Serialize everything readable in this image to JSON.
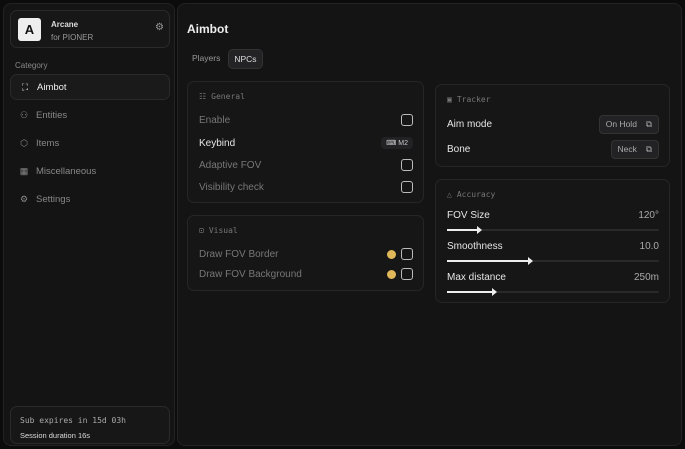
{
  "brand": {
    "logo_letter": "A",
    "name": "Arcane",
    "subtitle": "for PIONER"
  },
  "sidebar": {
    "category_label": "Category",
    "items": [
      {
        "label": "Aimbot",
        "icon": "crosshair-icon",
        "active": true
      },
      {
        "label": "Entities",
        "icon": "entities-icon"
      },
      {
        "label": "Items",
        "icon": "cube-icon"
      },
      {
        "label": "Miscellaneous",
        "icon": "grid-icon"
      },
      {
        "label": "Settings",
        "icon": "gear-icon"
      }
    ]
  },
  "footer": {
    "subscription": "Sub expires in 15d 03h",
    "session": "Session duration 16s"
  },
  "main": {
    "title": "Aimbot",
    "tabs": [
      {
        "label": "Players"
      },
      {
        "label": "NPCs",
        "active": true
      }
    ]
  },
  "general": {
    "title": "General",
    "rows": {
      "enable": "Enable",
      "keybind": "Keybind",
      "keybind_value": "M2",
      "adaptive": "Adaptive FOV",
      "visibility": "Visibility check"
    }
  },
  "visual": {
    "title": "Visual",
    "border": "Draw FOV Border",
    "background": "Draw FOV Background",
    "color": "#e0b85a"
  },
  "tracker": {
    "title": "Tracker",
    "aim_mode": "Aim mode",
    "aim_mode_value": "On Hold",
    "bone": "Bone",
    "bone_value": "Neck"
  },
  "accuracy": {
    "title": "Accuracy",
    "sliders": [
      {
        "label": "FOV Size",
        "value": "120°",
        "fraction": 0.14
      },
      {
        "label": "Smoothness",
        "value": "10.0",
        "fraction": 0.38
      },
      {
        "label": "Max distance",
        "value": "250m",
        "fraction": 0.21
      }
    ]
  }
}
